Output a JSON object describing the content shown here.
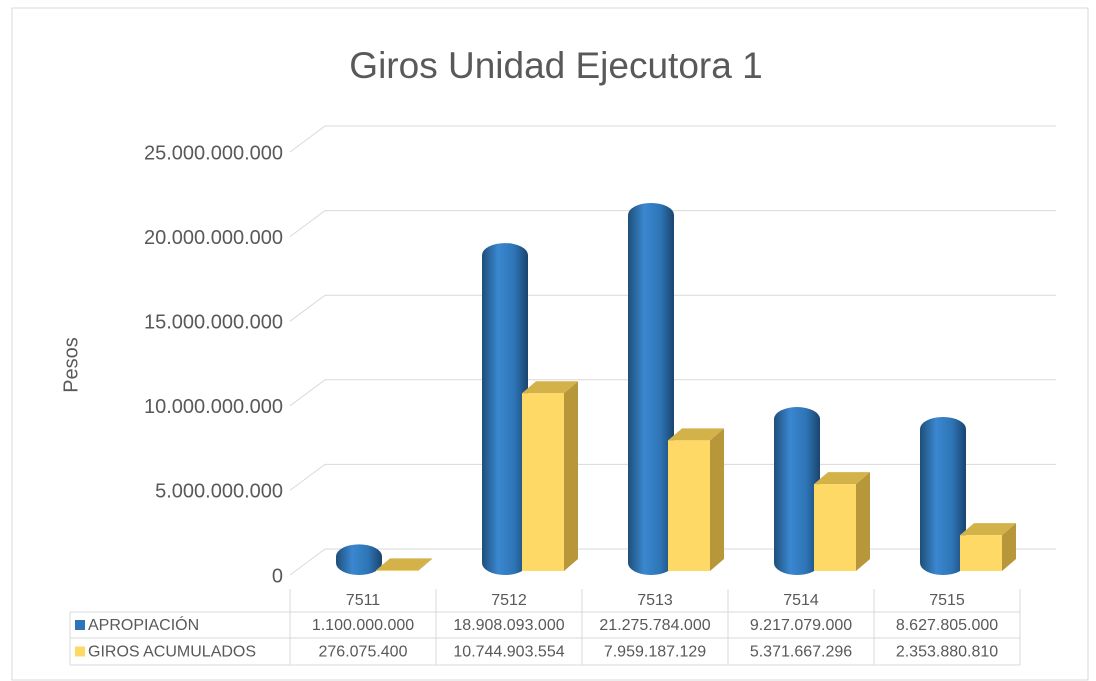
{
  "chart_data": {
    "type": "bar3d",
    "title": "Giros Unidad Ejecutora 1",
    "y_label": "Pesos",
    "categories": [
      "7511",
      "7512",
      "7513",
      "7514",
      "7515"
    ],
    "series": [
      {
        "name": "APROPIACIÓN",
        "color": "#2e75b6",
        "values": [
          1100000000,
          18908093000,
          21275784000,
          9217079000,
          8627805000
        ],
        "value_labels": [
          "1.100.000.000",
          "18.908.093.000",
          "21.275.784.000",
          "9.217.079.000",
          "8.627.805.000"
        ]
      },
      {
        "name": "GIROS ACUMULADOS",
        "color": "#ffd966",
        "values": [
          276075400,
          10744903554,
          7959187129,
          5371667296,
          2353880810
        ],
        "value_labels": [
          "276.075.400",
          "10.744.903.554",
          "7.959.187.129",
          "5.371.667.296",
          "2.353.880.810"
        ]
      }
    ],
    "ylim": [
      0,
      25000000000
    ],
    "yticks": [
      0,
      {
        "value": 5000000000,
        "label": "5.000.000.000"
      },
      {
        "value": 10000000000,
        "label": "10.000.000.000"
      },
      {
        "value": 15000000000,
        "label": "15.000.000.000"
      },
      {
        "value": 20000000000,
        "label": "20.000.000.000"
      },
      {
        "value": 25000000000,
        "label": "25.000.000.000"
      }
    ],
    "grid": true
  }
}
